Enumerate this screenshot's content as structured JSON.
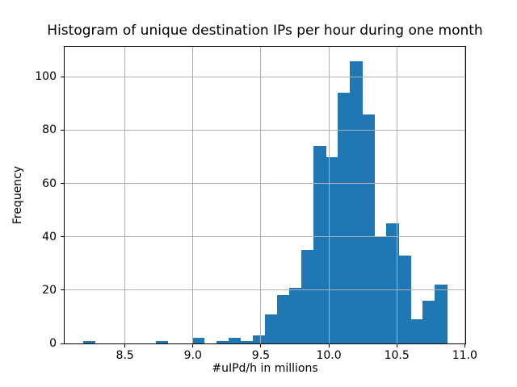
{
  "figure": {
    "background": "#ffffff",
    "text_color": "#000000"
  },
  "chart_data": {
    "type": "bar",
    "subtype": "histogram",
    "title": "Histogram of unique destination IPs per hour during one month",
    "xlabel": "#uIPd/h in millions",
    "ylabel": "Frequency",
    "bar_color": "#1f77b4",
    "grid_color": "#b0b0b0",
    "grid": true,
    "bin_start": 8.19,
    "bin_width": 0.089333,
    "counts": [
      1,
      0,
      0,
      0,
      0,
      0,
      1,
      0,
      0,
      2,
      0,
      1,
      2,
      1,
      3,
      11,
      18,
      21,
      35,
      74,
      70,
      94,
      106,
      86,
      40,
      45,
      33,
      9,
      16,
      22
    ],
    "xlim": [
      8.056,
      11.004
    ],
    "ylim": [
      0,
      111.3
    ],
    "xticks": [
      {
        "v": 8.5,
        "label": "8.5"
      },
      {
        "v": 9.0,
        "label": "9.0"
      },
      {
        "v": 9.5,
        "label": "9.5"
      },
      {
        "v": 10.0,
        "label": "10.0"
      },
      {
        "v": 10.5,
        "label": "10.5"
      },
      {
        "v": 11.0,
        "label": "11.0"
      }
    ],
    "yticks": [
      {
        "v": 0,
        "label": "0"
      },
      {
        "v": 20,
        "label": "20"
      },
      {
        "v": 40,
        "label": "40"
      },
      {
        "v": 60,
        "label": "60"
      },
      {
        "v": 80,
        "label": "80"
      },
      {
        "v": 100,
        "label": "100"
      }
    ]
  }
}
